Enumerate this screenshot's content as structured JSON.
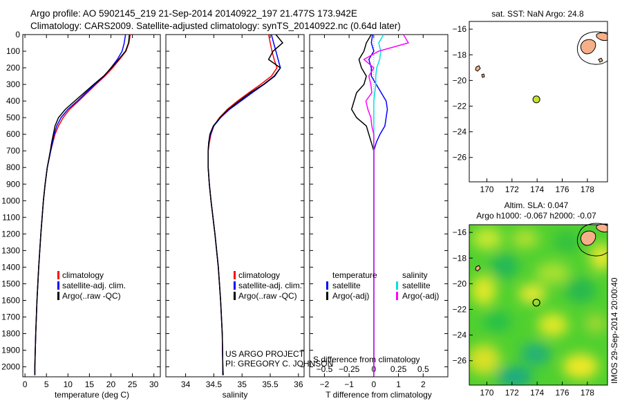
{
  "header": {
    "line1": "Argo profile: AO 5902145_219 21-Sep-2014 20140922_197 21.477S 173.942E",
    "line2": "Climatology: CARS2009. Satellite-adjusted climatology: synTS_20140922.nc (0.64d later)"
  },
  "colors": {
    "climatology": "#ff0000",
    "satellite": "#0000ff",
    "argo": "#000000",
    "sat_salinity": "#00e0e0",
    "argo_salinity": "#ff00ff",
    "land": "#f5b08a",
    "marker": "#c8e030"
  },
  "chart_data": [
    {
      "type": "line",
      "id": "temperature",
      "xlabel": "temperature (deg C)",
      "xlim": [
        -0.5,
        31.5
      ],
      "xticks": [
        0,
        5,
        10,
        15,
        20,
        25,
        30
      ],
      "ylim": [
        2060,
        0
      ],
      "yticks": [
        0,
        100,
        200,
        300,
        400,
        500,
        600,
        700,
        800,
        900,
        1000,
        1100,
        1200,
        1300,
        1400,
        1500,
        1600,
        1700,
        1800,
        1900,
        2000
      ],
      "legend": [
        "climatology",
        "satellite-adj. clim.",
        "Argo(..raw -QC)"
      ],
      "depth": [
        0,
        50,
        100,
        150,
        200,
        250,
        300,
        350,
        400,
        450,
        500,
        550,
        600,
        650,
        700,
        800,
        900,
        1000,
        1200,
        1400,
        1600,
        1800,
        2000,
        2050
      ],
      "series": [
        {
          "name": "climatology",
          "color": "#ff0000",
          "values": [
            24.5,
            24.2,
            23.5,
            22.0,
            20.4,
            18.6,
            16.5,
            14.5,
            12.5,
            10.4,
            8.9,
            7.8,
            7.0,
            6.5,
            6.0,
            5.2,
            4.7,
            4.3,
            3.7,
            3.2,
            2.8,
            2.5,
            2.3,
            2.3
          ]
        },
        {
          "name": "satellite-adj. clim.",
          "color": "#0000ff",
          "values": [
            23.4,
            23.1,
            22.6,
            21.5,
            20.0,
            18.4,
            16.3,
            14.2,
            12.2,
            10.0,
            8.4,
            7.4,
            6.8,
            6.4,
            6.0,
            5.2,
            4.7,
            4.3,
            3.7,
            3.2,
            2.8,
            2.5,
            2.3,
            2.3
          ]
        },
        {
          "name": "Argo(..raw -QC)",
          "color": "#000000",
          "values": [
            24.3,
            24.1,
            23.4,
            21.8,
            20.1,
            18.3,
            16.0,
            13.8,
            11.6,
            9.4,
            7.8,
            7.0,
            6.6,
            6.2,
            5.9,
            5.2,
            4.7,
            4.3,
            3.7,
            3.2,
            2.8,
            2.5,
            2.3,
            2.3
          ]
        }
      ]
    },
    {
      "type": "line",
      "id": "salinity",
      "xlabel": "salinity",
      "xlim": [
        33.65,
        36.1
      ],
      "xticks": [
        34,
        34.5,
        35,
        35.5,
        36
      ],
      "ylim": [
        2060,
        0
      ],
      "legend": [
        "climatology",
        "satellite-adj. clim.",
        "Argo(..raw -QC)"
      ],
      "annotation": [
        "US ARGO PROJECT",
        "PI: GREGORY C. JOHNSON"
      ],
      "depth": [
        0,
        50,
        100,
        150,
        200,
        250,
        300,
        350,
        400,
        450,
        500,
        550,
        600,
        650,
        700,
        800,
        900,
        1000,
        1200,
        1400,
        1600,
        1800,
        2000,
        2050
      ],
      "series": [
        {
          "name": "climatology",
          "color": "#ff0000",
          "values": [
            35.47,
            35.5,
            35.53,
            35.57,
            35.62,
            35.52,
            35.33,
            35.12,
            34.92,
            34.74,
            34.6,
            34.5,
            34.45,
            34.42,
            34.4,
            34.4,
            34.42,
            34.45,
            34.52,
            34.58,
            34.62,
            34.65,
            34.66,
            34.67
          ]
        },
        {
          "name": "satellite-adj. clim.",
          "color": "#0000ff",
          "values": [
            35.52,
            35.56,
            35.6,
            35.64,
            35.68,
            35.58,
            35.39,
            35.18,
            34.98,
            34.78,
            34.62,
            34.5,
            34.44,
            34.41,
            34.4,
            34.4,
            34.42,
            34.45,
            34.52,
            34.58,
            34.62,
            34.65,
            34.66,
            34.66
          ]
        },
        {
          "name": "Argo(..raw -QC)",
          "color": "#000000",
          "values": [
            35.6,
            35.72,
            35.55,
            35.47,
            35.68,
            35.57,
            35.38,
            35.15,
            34.95,
            34.76,
            34.61,
            34.49,
            34.43,
            34.41,
            34.4,
            34.4,
            34.42,
            34.45,
            34.52,
            34.58,
            34.62,
            34.65,
            34.66,
            34.66
          ]
        }
      ]
    },
    {
      "type": "line",
      "id": "difference",
      "xlabel": "T difference from climatology",
      "xlabel2": "S difference from climatology",
      "xlim_T": [
        -2.6,
        3.0
      ],
      "xticks_T": [
        -2,
        -1,
        0,
        1,
        2
      ],
      "xlim_S": [
        -0.65,
        0.75
      ],
      "xticks_S": [
        -0.5,
        -0.25,
        0,
        0.25,
        0.5
      ],
      "ylim": [
        2060,
        0
      ],
      "legend_left_title": "temperature",
      "legend_right_title": "salinity",
      "legend": [
        "satellite",
        "Argo(-adj)",
        "satellite",
        "Argo(-adj)"
      ],
      "depth": [
        0,
        50,
        100,
        150,
        200,
        250,
        300,
        350,
        400,
        450,
        500,
        550,
        600,
        650,
        700,
        800,
        900,
        1000,
        1200,
        1400,
        1600,
        1800,
        2000,
        2050
      ],
      "series": [
        {
          "name": "satellite",
          "variable": "temperature",
          "color": "#0000ff",
          "values": [
            -0.05,
            -0.1,
            0.0,
            -0.2,
            -0.1,
            -0.1,
            0.1,
            0.3,
            0.5,
            0.55,
            0.5,
            0.45,
            0.25,
            0.1,
            0.0,
            0.0,
            0.0,
            0.0,
            0.0,
            0.0,
            0.0,
            0.0,
            0.0,
            0.0
          ]
        },
        {
          "name": "Argo(-adj)",
          "variable": "temperature",
          "color": "#000000",
          "values": [
            -0.1,
            -0.3,
            -0.4,
            -0.6,
            -0.5,
            -0.3,
            -0.4,
            -0.7,
            -0.8,
            -0.9,
            -0.7,
            -0.3,
            -0.2,
            -0.1,
            0.0,
            0.0,
            0.0,
            0.0,
            0.0,
            0.0,
            0.0,
            0.0,
            0.0,
            0.0
          ]
        },
        {
          "name": "satellite",
          "variable": "salinity",
          "color": "#00e0e0",
          "values": [
            0.1,
            0.05,
            0.07,
            0.06,
            0.03,
            0.02,
            0.02,
            0.01,
            0.0,
            0.0,
            0.0,
            0.0,
            0.0,
            0.0,
            0.0,
            0.0,
            0.0,
            0.0,
            0.0,
            0.0,
            0.0,
            0.0,
            0.0,
            0.0
          ]
        },
        {
          "name": "Argo(-adj)",
          "variable": "salinity",
          "color": "#ff00ff",
          "values": [
            0.3,
            0.35,
            0.05,
            -0.1,
            0.0,
            -0.05,
            -0.03,
            -0.02,
            -0.08,
            -0.06,
            -0.03,
            -0.02,
            0.0,
            0.0,
            0.0,
            0.0,
            0.0,
            0.0,
            0.0,
            0.0,
            0.0,
            0.0,
            0.0,
            0.0
          ]
        }
      ]
    },
    {
      "type": "scatter",
      "id": "map-sst",
      "title": "sat. SST: NaN Argo: 24.8",
      "xlim": [
        168.6,
        179.6
      ],
      "ylim": [
        -27.9,
        -15.4
      ],
      "xticks": [
        170,
        172,
        174,
        176,
        178
      ],
      "yticks": [
        -16,
        -18,
        -20,
        -22,
        -24,
        -26
      ],
      "points": [
        {
          "x": 173.942,
          "y": -21.477
        }
      ]
    },
    {
      "type": "heatmap",
      "id": "map-sla",
      "title_line1": "Altim. SLA: 0.047",
      "title_line2": "Argo h1000: -0.067 h2000: -0.07",
      "xlim": [
        168.6,
        179.6
      ],
      "ylim": [
        -27.9,
        -15.4
      ],
      "xticks": [
        170,
        172,
        174,
        176,
        178
      ],
      "yticks": [
        -16,
        -18,
        -20,
        -22,
        -24,
        -26
      ],
      "points": [
        {
          "x": 173.942,
          "y": -21.477
        }
      ]
    }
  ],
  "side_label": "IMOS 29-Sep-2014 20:00:40"
}
